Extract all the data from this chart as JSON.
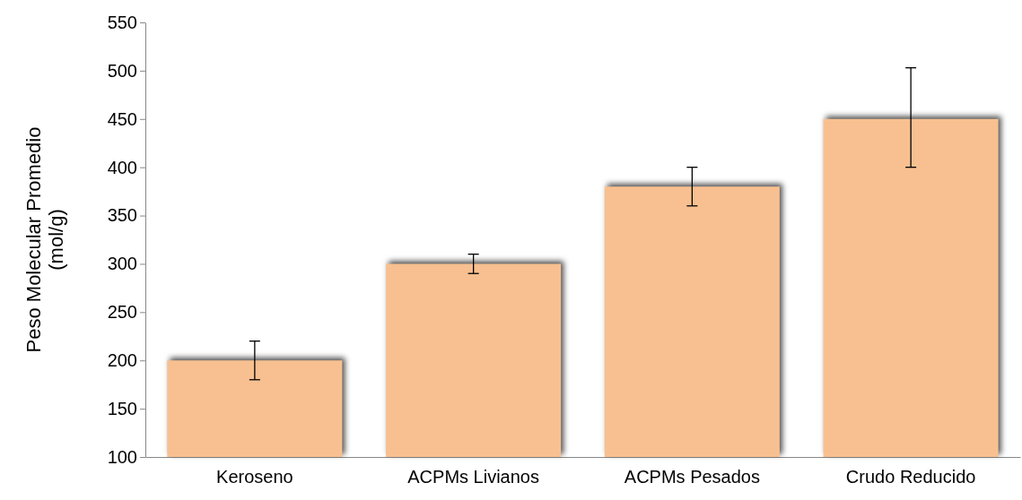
{
  "chart_data": {
    "type": "bar",
    "ylabel": "Peso Molecular  Promedio\n(mol/g)",
    "categories": [
      "Keroseno",
      "ACPMs Livianos",
      "ACPMs Pesados",
      "Crudo Reducido"
    ],
    "values": [
      200,
      300,
      380,
      450
    ],
    "errors": [
      20,
      10,
      20,
      [
        400,
        503
      ]
    ],
    "color": "#f8c090",
    "ylim": [
      100,
      550
    ],
    "yticks": [
      100,
      150,
      200,
      250,
      300,
      350,
      400,
      450,
      500,
      550
    ],
    "grid": false
  }
}
